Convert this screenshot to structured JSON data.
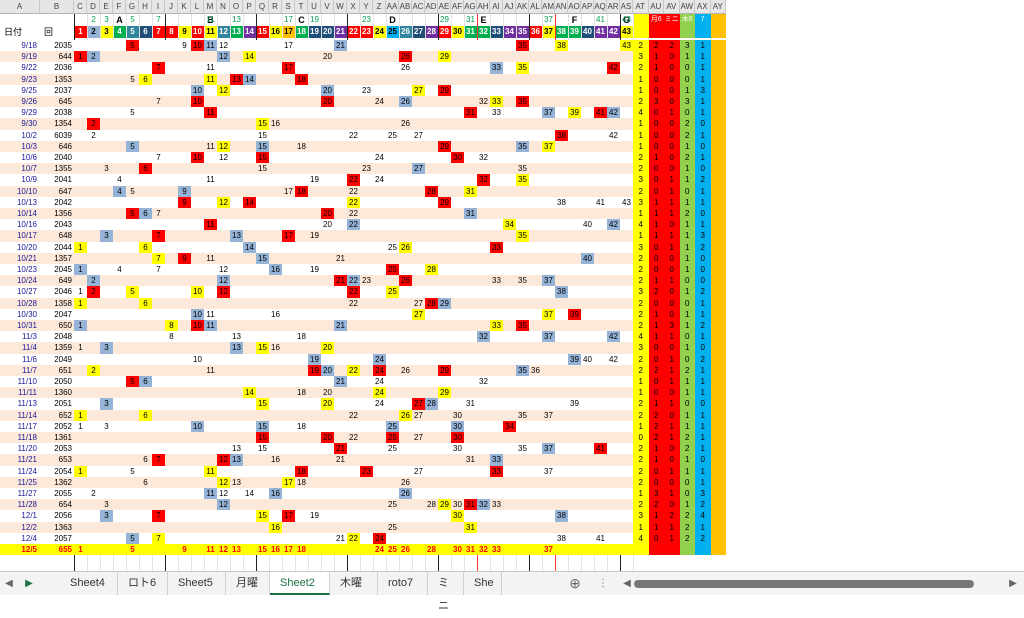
{
  "column_letters": [
    "A",
    "B",
    "C",
    "D",
    "E",
    "F",
    "G",
    "H",
    "I",
    "J",
    "K",
    "L",
    "M",
    "N",
    "O",
    "P",
    "Q",
    "R",
    "S",
    "T",
    "U",
    "V",
    "W",
    "X",
    "Y",
    "Z",
    "AA",
    "AB",
    "AC",
    "AD",
    "AE",
    "AF",
    "AG",
    "AH",
    "AI",
    "AJ",
    "AK",
    "AL",
    "AM",
    "AN",
    "AO",
    "AP",
    "AQ",
    "AR",
    "AS",
    "AT",
    "AU",
    "AV",
    "AW",
    "AX",
    "AY"
  ],
  "group_titles": [
    "A",
    "B",
    "C",
    "D",
    "E",
    "F",
    "G"
  ],
  "header_labels": {
    "date": "日付",
    "round": "回"
  },
  "summary_headers": [
    "月6",
    "ミニ",
    "木6",
    "7"
  ],
  "number_header": [
    1,
    2,
    3,
    4,
    5,
    6,
    7,
    8,
    9,
    10,
    11,
    12,
    13,
    14,
    15,
    16,
    17,
    18,
    19,
    20,
    21,
    22,
    23,
    24,
    25,
    26,
    27,
    28,
    29,
    30,
    31,
    32,
    33,
    34,
    35,
    36,
    37,
    38,
    39,
    40,
    41,
    42,
    43
  ],
  "number_header_top": [
    null,
    2,
    3,
    null,
    5,
    null,
    7,
    null,
    null,
    null,
    11,
    null,
    13,
    null,
    null,
    null,
    17,
    null,
    19,
    null,
    null,
    null,
    23,
    null,
    null,
    null,
    null,
    null,
    29,
    null,
    31,
    null,
    null,
    null,
    null,
    null,
    37,
    null,
    null,
    null,
    41,
    null,
    43
  ],
  "rows": [
    {
      "date": "9/18",
      "round": "2035",
      "nums": [
        5,
        9,
        10,
        11,
        12,
        17,
        21,
        35,
        38,
        43
      ],
      "sum": [
        "2",
        "2",
        "2",
        "3",
        "1"
      ]
    },
    {
      "date": "9/19",
      "round": "644",
      "nums": [
        1,
        2,
        12,
        14,
        20,
        26,
        29
      ],
      "sum": [
        "3",
        "1",
        "0",
        "1",
        "1"
      ]
    },
    {
      "date": "9/22",
      "round": "2036",
      "nums": [
        7,
        11,
        17,
        26,
        33,
        35,
        42
      ],
      "sum": [
        "2",
        "1",
        "0",
        "0",
        "1"
      ]
    },
    {
      "date": "9/23",
      "round": "1353",
      "nums": [
        5,
        6,
        11,
        13,
        14,
        18
      ],
      "sum": [
        "1",
        "0",
        "0",
        "0",
        "1"
      ]
    },
    {
      "date": "9/25",
      "round": "2037",
      "nums": [
        10,
        12,
        20,
        23,
        27,
        29
      ],
      "sum": [
        "1",
        "0",
        "0",
        "1",
        "3"
      ]
    },
    {
      "date": "9/26",
      "round": "645",
      "nums": [
        7,
        10,
        20,
        24,
        26,
        32,
        33,
        35
      ],
      "sum": [
        "2",
        "3",
        "0",
        "3",
        "1"
      ]
    },
    {
      "date": "9/29",
      "round": "2038",
      "nums": [
        5,
        11,
        31,
        33,
        37,
        39,
        41,
        42
      ],
      "sum": [
        "4",
        "0",
        "1",
        "0",
        "1"
      ]
    },
    {
      "date": "9/30",
      "round": "1354",
      "nums": [
        2,
        15,
        16,
        26
      ],
      "sum": [
        "1",
        "0",
        "0",
        "2",
        "0"
      ]
    },
    {
      "date": "10/2",
      "round": "6039",
      "nums": [
        2,
        15,
        22,
        25,
        27,
        38,
        42
      ],
      "sum": [
        "1",
        "0",
        "0",
        "2",
        "1"
      ]
    },
    {
      "date": "10/3",
      "round": "646",
      "nums": [
        5,
        11,
        12,
        15,
        18,
        29,
        35,
        37
      ],
      "sum": [
        "1",
        "0",
        "0",
        "1",
        "0"
      ]
    },
    {
      "date": "10/6",
      "round": "2040",
      "nums": [
        7,
        10,
        12,
        15,
        24,
        30,
        32
      ],
      "sum": [
        "2",
        "1",
        "0",
        "2",
        "1"
      ]
    },
    {
      "date": "10/7",
      "round": "1355",
      "nums": [
        3,
        6,
        15,
        23,
        27,
        35
      ],
      "sum": [
        "2",
        "0",
        "0",
        "1",
        "0"
      ]
    },
    {
      "date": "10/9",
      "round": "2041",
      "nums": [
        4,
        11,
        19,
        22,
        24,
        32,
        35
      ],
      "sum": [
        "3",
        "0",
        "1",
        "1",
        "2"
      ]
    },
    {
      "date": "10/10",
      "round": "647",
      "nums": [
        4,
        5,
        9,
        17,
        18,
        22,
        28,
        31
      ],
      "sum": [
        "2",
        "0",
        "1",
        "0",
        "1"
      ]
    },
    {
      "date": "10/13",
      "round": "2042",
      "nums": [
        9,
        12,
        14,
        22,
        29,
        38,
        41,
        43
      ],
      "sum": [
        "3",
        "1",
        "1",
        "1",
        "1"
      ]
    },
    {
      "date": "10/14",
      "round": "1356",
      "nums": [
        5,
        6,
        7,
        20,
        22,
        31
      ],
      "sum": [
        "1",
        "1",
        "1",
        "2",
        "0"
      ]
    },
    {
      "date": "10/16",
      "round": "2043",
      "nums": [
        11,
        20,
        22,
        34,
        40,
        42
      ],
      "sum": [
        "4",
        "1",
        "0",
        "1",
        "1"
      ]
    },
    {
      "date": "10/17",
      "round": "648",
      "nums": [
        3,
        7,
        13,
        17,
        19,
        35
      ],
      "sum": [
        "1",
        "1",
        "1",
        "1",
        "3"
      ]
    },
    {
      "date": "10/20",
      "round": "2044",
      "nums": [
        1,
        6,
        14,
        25,
        26,
        33
      ],
      "sum": [
        "3",
        "0",
        "1",
        "1",
        "2"
      ]
    },
    {
      "date": "10/21",
      "round": "1357",
      "nums": [
        7,
        9,
        11,
        15,
        21,
        40
      ],
      "sum": [
        "2",
        "0",
        "0",
        "1",
        "0"
      ]
    },
    {
      "date": "10/23",
      "round": "2045",
      "nums": [
        1,
        4,
        7,
        12,
        16,
        19,
        25,
        28
      ],
      "sum": [
        "2",
        "0",
        "0",
        "1",
        "0"
      ]
    },
    {
      "date": "10/24",
      "round": "649",
      "nums": [
        2,
        12,
        21,
        22,
        23,
        26,
        33,
        35,
        37
      ],
      "sum": [
        "2",
        "1",
        "1",
        "0",
        "0"
      ]
    },
    {
      "date": "10/27",
      "round": "2046",
      "nums": [
        1,
        2,
        5,
        10,
        12,
        22,
        25,
        38
      ],
      "sum": [
        "3",
        "2",
        "0",
        "1",
        "2"
      ]
    },
    {
      "date": "10/28",
      "round": "1358",
      "nums": [
        1,
        6,
        22,
        27,
        28,
        29
      ],
      "sum": [
        "2",
        "0",
        "0",
        "0",
        "1"
      ]
    },
    {
      "date": "10/30",
      "round": "2047",
      "nums": [
        10,
        11,
        16,
        27,
        37,
        39
      ],
      "sum": [
        "2",
        "1",
        "0",
        "1",
        "1"
      ]
    },
    {
      "date": "10/31",
      "round": "650",
      "nums": [
        1,
        8,
        10,
        11,
        21,
        33,
        35
      ],
      "sum": [
        "2",
        "1",
        "3",
        "1",
        "2"
      ]
    },
    {
      "date": "11/3",
      "round": "2048",
      "nums": [
        8,
        13,
        18,
        32,
        37,
        42
      ],
      "sum": [
        "4",
        "1",
        "1",
        "0",
        "1"
      ]
    },
    {
      "date": "11/4",
      "round": "1359",
      "nums": [
        1,
        3,
        13,
        15,
        16,
        20
      ],
      "sum": [
        "3",
        "0",
        "0",
        "1",
        "0"
      ]
    },
    {
      "date": "11/6",
      "round": "2049",
      "nums": [
        10,
        19,
        24,
        39,
        40,
        42
      ],
      "sum": [
        "2",
        "0",
        "1",
        "0",
        "2"
      ]
    },
    {
      "date": "11/7",
      "round": "651",
      "nums": [
        2,
        11,
        19,
        20,
        22,
        24,
        26,
        29,
        35,
        36
      ],
      "sum": [
        "2",
        "2",
        "1",
        "2",
        "1"
      ]
    },
    {
      "date": "11/10",
      "round": "2050",
      "nums": [
        5,
        6,
        21,
        24,
        32
      ],
      "sum": [
        "1",
        "0",
        "1",
        "1",
        "1"
      ]
    },
    {
      "date": "11/11",
      "round": "1360",
      "nums": [
        14,
        18,
        20,
        24,
        29
      ],
      "sum": [
        "1",
        "0",
        "0",
        "1",
        "1"
      ]
    },
    {
      "date": "11/13",
      "round": "2051",
      "nums": [
        3,
        15,
        20,
        24,
        27,
        28,
        31,
        39
      ],
      "sum": [
        "2",
        "1",
        "1",
        "0",
        "0"
      ]
    },
    {
      "date": "11/14",
      "round": "652",
      "nums": [
        1,
        6,
        22,
        26,
        27,
        30,
        35,
        37
      ],
      "sum": [
        "2",
        "2",
        "0",
        "1",
        "1"
      ]
    },
    {
      "date": "11/17",
      "round": "2052",
      "nums": [
        1,
        3,
        10,
        15,
        18,
        25,
        30,
        34
      ],
      "sum": [
        "1",
        "2",
        "1",
        "1",
        "1"
      ]
    },
    {
      "date": "11/18",
      "round": "1361",
      "nums": [
        15,
        20,
        22,
        25,
        27,
        30
      ],
      "sum": [
        "0",
        "2",
        "1",
        "2",
        "1"
      ]
    },
    {
      "date": "11/20",
      "round": "2053",
      "nums": [
        13,
        15,
        21,
        25,
        30,
        35,
        37,
        41
      ],
      "sum": [
        "2",
        "1",
        "0",
        "2",
        "1"
      ]
    },
    {
      "date": "11/21",
      "round": "653",
      "nums": [
        6,
        7,
        12,
        13,
        16,
        21,
        31,
        33
      ],
      "sum": [
        "2",
        "1",
        "0",
        "1",
        "0"
      ]
    },
    {
      "date": "11/24",
      "round": "2054",
      "nums": [
        1,
        5,
        11,
        18,
        23,
        27,
        33,
        37
      ],
      "sum": [
        "2",
        "0",
        "1",
        "1",
        "1"
      ]
    },
    {
      "date": "11/25",
      "round": "1362",
      "nums": [
        6,
        12,
        13,
        17,
        18,
        26
      ],
      "sum": [
        "2",
        "0",
        "0",
        "0",
        "1"
      ]
    },
    {
      "date": "11/27",
      "round": "2055",
      "nums": [
        2,
        11,
        12,
        14,
        16,
        26
      ],
      "sum": [
        "1",
        "3",
        "1",
        "0",
        "3"
      ]
    },
    {
      "date": "11/28",
      "round": "654",
      "nums": [
        3,
        12,
        25,
        28,
        29,
        30,
        31,
        32,
        33
      ],
      "sum": [
        "2",
        "2",
        "0",
        "1",
        "2"
      ]
    },
    {
      "date": "12/1",
      "round": "2056",
      "nums": [
        3,
        7,
        15,
        17,
        19,
        30,
        38
      ],
      "sum": [
        "3",
        "1",
        "2",
        "2",
        "4"
      ]
    },
    {
      "date": "12/2",
      "round": "1363",
      "nums": [
        16,
        25,
        31
      ],
      "sum": [
        "1",
        "1",
        "1",
        "2",
        "1"
      ]
    },
    {
      "date": "12/4",
      "round": "2057",
      "nums": [
        5,
        7,
        21,
        22,
        24,
        38,
        41
      ],
      "sum": [
        "4",
        "0",
        "1",
        "2",
        "2"
      ]
    },
    {
      "date": "12/5",
      "round": "655",
      "nums": [
        1,
        5,
        9,
        11,
        12,
        13,
        15,
        16,
        17,
        18,
        24,
        25,
        26,
        28,
        30,
        31,
        32,
        33,
        37
      ],
      "sum": [
        "",
        "",
        "",
        "",
        ""
      ],
      "highlight": true
    }
  ],
  "tabs": [
    "Sheet4",
    "ロト6",
    "Sheet5",
    "月曜",
    "Sheet2",
    "木曜",
    "roto7",
    "ミニ",
    "She"
  ],
  "active_tab": "Sheet2",
  "colors": {
    "red": "#ff0000",
    "yellow": "#ffff00",
    "blue": "#95b3d7",
    "highlight_row": "#ffff00",
    "alt_row": "#fde9d9",
    "green_text": "#00b050",
    "header_bg": "#e6e6e6"
  },
  "number_colors": {
    "1": "#ff0000",
    "2": "#95b3d7",
    "3": "#ffff00",
    "4": "#00b050",
    "5": "#31859c",
    "6": "#1f4e79",
    "7": "#ff0000",
    "8": "#ff0000",
    "9": "#ffff00",
    "10": "#ff0000",
    "11": "#ffff00",
    "12": "#31859c",
    "13": "#00b050",
    "14": "#7030a0",
    "15": "#ff0000",
    "16": "#ffff00",
    "17": "#ffc000",
    "18": "#00b050",
    "19": "#1f4e79",
    "20": "#1f4e79",
    "21": "#7030a0",
    "22": "#ff0000",
    "23": "#ff0000",
    "24": "#ffff00",
    "25": "#00b0f0",
    "26": "#31859c",
    "27": "#1f4e79",
    "28": "#7030a0",
    "29": "#ff0000",
    "30": "#ffff00",
    "31": "#00b050",
    "32": "#00b050",
    "33": "#1f4e79",
    "34": "#7030a0",
    "35": "#7030a0",
    "36": "#ff0000",
    "37": "#ffff00",
    "38": "#00b050",
    "39": "#00b050",
    "40": "#1f4e79",
    "41": "#7030a0",
    "42": "#7030a0",
    "43": "#ffff00"
  },
  "summary_col_colors": [
    "#ffff00",
    "#ff0000",
    "#ff0000",
    "#92d050",
    "#00b0f0",
    "#ffc000"
  ]
}
